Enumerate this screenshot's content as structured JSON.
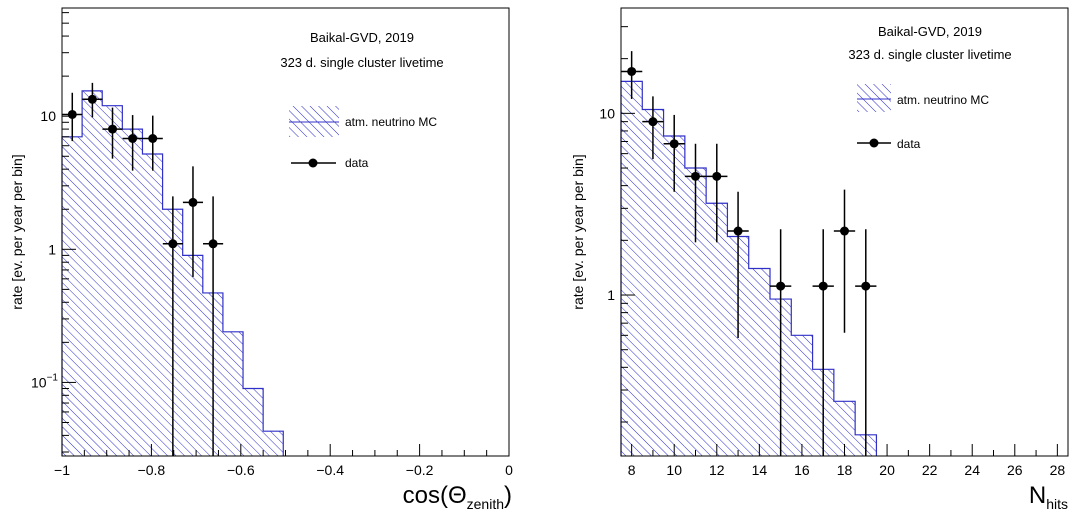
{
  "colors": {
    "mc": "#3030c8",
    "data": "#000000",
    "frame": "#000000"
  },
  "chart_data": [
    {
      "type": "bar",
      "subtype": "histogram-with-points",
      "title": "",
      "xlabel_main": "cos(Θ",
      "xlabel_sub": "zenith",
      "xlabel_close": ")",
      "ylabel": "rate [ev. per year per bin]",
      "yscale": "log",
      "xlim": [
        -1,
        0
      ],
      "ylim": [
        0.028,
        65
      ],
      "xticks": [
        -1,
        -0.8,
        -0.6,
        -0.4,
        -0.2,
        0
      ],
      "xtick_labels": [
        "−1",
        "−0.8",
        "−0.6",
        "−0.4",
        "−0.2",
        "0"
      ],
      "yticks": [
        {
          "value": 10,
          "base": "10",
          "exp": ""
        },
        {
          "value": 1,
          "base": "1",
          "exp": ""
        },
        {
          "value": 0.1,
          "base": "10",
          "exp": "−1"
        }
      ],
      "annotations": [
        "Baikal-GVD, 2019",
        "323 d. single cluster livetime"
      ],
      "legend": {
        "position": "right",
        "mc_label": "atm. neutrino MC",
        "data_label": "data"
      },
      "mc_hist": {
        "name": "atm. neutrino MC",
        "edges": [
          -1,
          -0.955,
          -0.91,
          -0.865,
          -0.82,
          -0.775,
          -0.73,
          -0.685,
          -0.64,
          -0.595,
          -0.55,
          -0.505
        ],
        "values": [
          7.0,
          15.5,
          12.0,
          8.0,
          5.2,
          2.0,
          0.9,
          0.47,
          0.24,
          0.09,
          0.043
        ]
      },
      "data_points": {
        "name": "data",
        "x": [
          -0.977,
          -0.932,
          -0.887,
          -0.842,
          -0.797,
          -0.752,
          -0.707,
          -0.662
        ],
        "y": [
          10.3,
          13.4,
          8.0,
          6.8,
          6.8,
          1.1,
          2.25,
          1.1
        ],
        "y_low": [
          6.5,
          9.8,
          4.8,
          3.9,
          3.9,
          0.02,
          0.62,
          0.02
        ],
        "y_high": [
          15.0,
          17.8,
          11.6,
          10.2,
          10.1,
          2.5,
          4.2,
          2.5
        ],
        "x_halfwidth": 0.0225
      }
    },
    {
      "type": "bar",
      "subtype": "histogram-with-points",
      "title": "",
      "xlabel_main": "N",
      "xlabel_sub": "hits",
      "xlabel_close": "",
      "ylabel": "rate [ev. per year per bin]",
      "yscale": "log",
      "xlim": [
        7.5,
        28.5
      ],
      "ylim": [
        0.13,
        38
      ],
      "xticks": [
        8,
        10,
        12,
        14,
        16,
        18,
        20,
        22,
        24,
        26,
        28
      ],
      "xtick_labels": [
        "8",
        "10",
        "12",
        "14",
        "16",
        "18",
        "20",
        "22",
        "24",
        "26",
        "28"
      ],
      "yticks": [
        {
          "value": 10,
          "base": "10",
          "exp": ""
        },
        {
          "value": 1,
          "base": "1",
          "exp": ""
        }
      ],
      "annotations": [
        "Baikal-GVD, 2019",
        "323 d. single cluster livetime"
      ],
      "legend": {
        "position": "right",
        "mc_label": "atm. neutrino MC",
        "data_label": "data"
      },
      "mc_hist": {
        "name": "atm. neutrino MC",
        "edges": [
          7.5,
          8.5,
          9.5,
          10.5,
          11.5,
          12.5,
          13.5,
          14.5,
          15.5,
          16.5,
          17.5,
          18.5,
          19.5
        ],
        "values": [
          15.0,
          10.5,
          7.5,
          5.0,
          3.2,
          2.1,
          1.4,
          0.95,
          0.6,
          0.39,
          0.26,
          0.17
        ]
      },
      "data_points": {
        "name": "data",
        "x": [
          8,
          9,
          10,
          11,
          12,
          13,
          15,
          17,
          18,
          19
        ],
        "y": [
          17.0,
          9.0,
          6.8,
          4.5,
          4.5,
          2.25,
          1.12,
          1.12,
          2.25,
          1.12
        ],
        "y_low": [
          12.0,
          5.6,
          3.7,
          1.95,
          1.95,
          0.58,
          0.02,
          0.02,
          0.62,
          0.02
        ],
        "y_high": [
          22.0,
          12.4,
          9.8,
          6.8,
          6.8,
          3.7,
          2.3,
          2.3,
          3.8,
          2.3
        ],
        "x_halfwidth": 0.5
      }
    }
  ]
}
